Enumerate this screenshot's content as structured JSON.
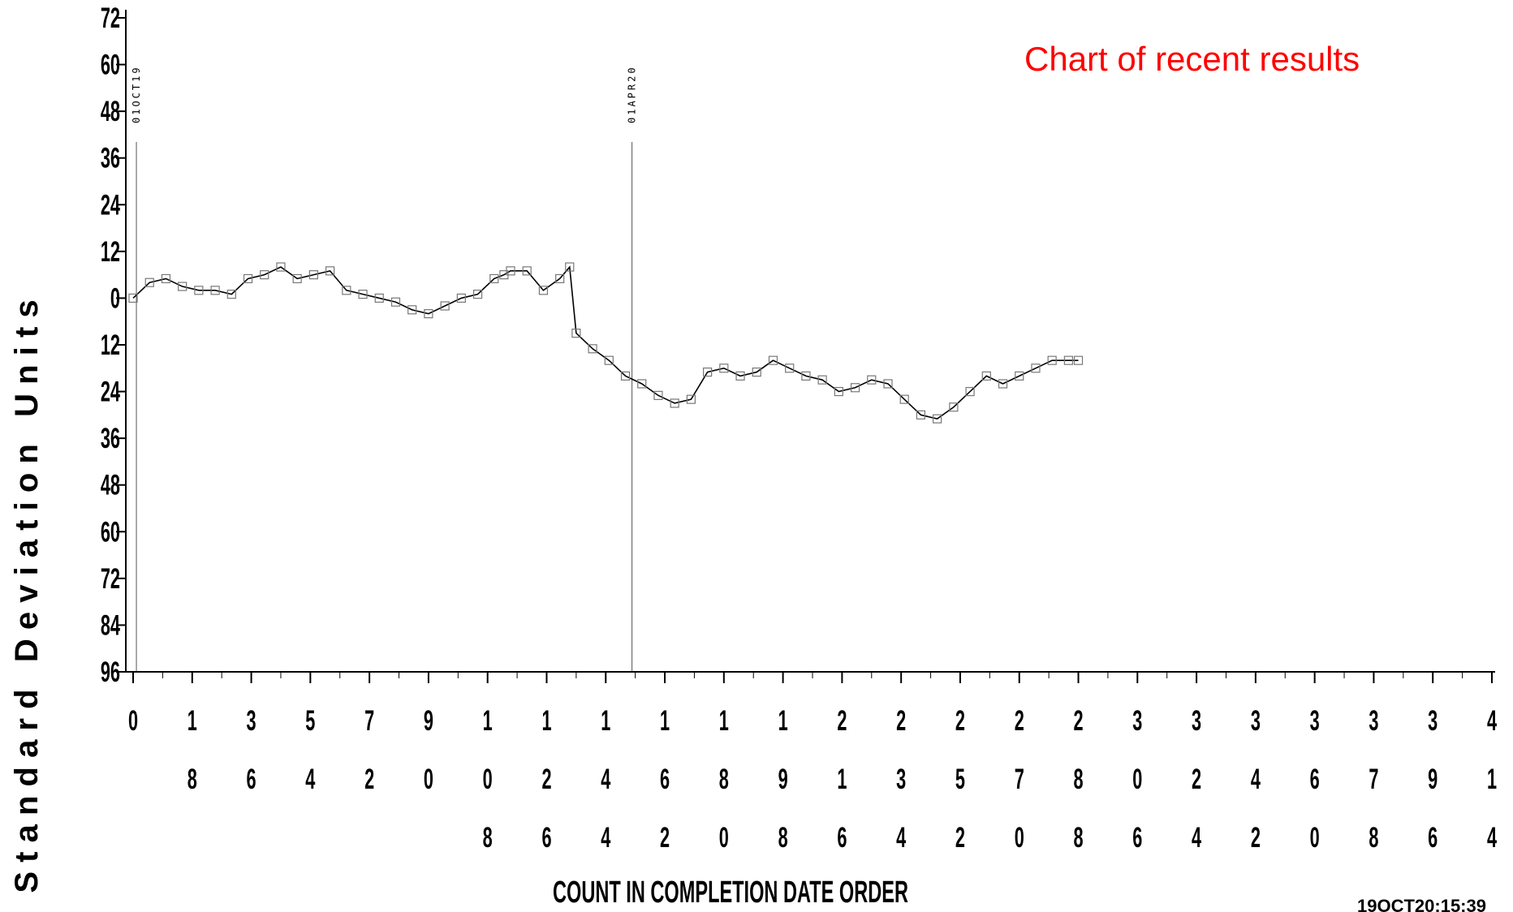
{
  "chart_data": {
    "type": "line",
    "title": "Chart of recent results",
    "title_color": "#ff0000",
    "xlabel": "COUNT IN COMPLETION DATE ORDER",
    "ylabel": "S t a n d a r d   D e v i a t i o n   U n i t s",
    "xlim": [
      0,
      414
    ],
    "ylim": [
      -72,
      96
    ],
    "y_tick_labels": [
      "72",
      "60",
      "48",
      "36",
      "24",
      "12",
      "0",
      "12",
      "24",
      "36",
      "48",
      "60",
      "72",
      "84",
      "96"
    ],
    "y_tick_values": [
      -72,
      -60,
      -48,
      -36,
      -24,
      -12,
      0,
      12,
      24,
      36,
      48,
      60,
      72,
      84,
      96
    ],
    "x_tick_values": [
      0,
      18,
      36,
      54,
      72,
      90,
      108,
      126,
      144,
      162,
      180,
      198,
      216,
      234,
      252,
      270,
      288,
      306,
      324,
      342,
      360,
      378,
      396,
      414
    ],
    "x_tick_labels": [
      "0",
      "18",
      "36",
      "54",
      "72",
      "90",
      "108",
      "126",
      "144",
      "162",
      "180",
      "198",
      "216",
      "234",
      "252",
      "270",
      "288",
      "306",
      "324",
      "342",
      "360",
      "378",
      "396",
      "414"
    ],
    "reference_lines": [
      {
        "x": 1,
        "label": "01OCT19"
      },
      {
        "x": 152,
        "label": "01APR20"
      }
    ],
    "footer_stamp": "19OCT20:15:39",
    "series": [
      {
        "marker": "open-square",
        "color": "#000000",
        "x": [
          0,
          5,
          10,
          15,
          20,
          25,
          30,
          35,
          40,
          45,
          50,
          55,
          60,
          65,
          70,
          75,
          80,
          85,
          90,
          95,
          100,
          105,
          110,
          113,
          115,
          120,
          125,
          130,
          133,
          135,
          140,
          145,
          150,
          155,
          160,
          165,
          170,
          175,
          180,
          185,
          190,
          195,
          200,
          205,
          210,
          215,
          220,
          225,
          230,
          235,
          240,
          245,
          250,
          255,
          260,
          265,
          270,
          275,
          280,
          285,
          288
        ],
        "y": [
          0,
          -4,
          -5,
          -3,
          -2,
          -2,
          -1,
          -5,
          -6,
          -8,
          -5,
          -6,
          -7,
          -2,
          -1,
          0,
          1,
          3,
          4,
          2,
          0,
          -1,
          -5,
          -6,
          -7,
          -7,
          -2,
          -5,
          -8,
          9,
          13,
          16,
          20,
          22,
          25,
          27,
          26,
          19,
          18,
          20,
          19,
          16,
          18,
          20,
          21,
          24,
          23,
          21,
          22,
          26,
          30,
          31,
          28,
          24,
          20,
          22,
          20,
          18,
          16,
          16,
          16
        ]
      }
    ]
  }
}
